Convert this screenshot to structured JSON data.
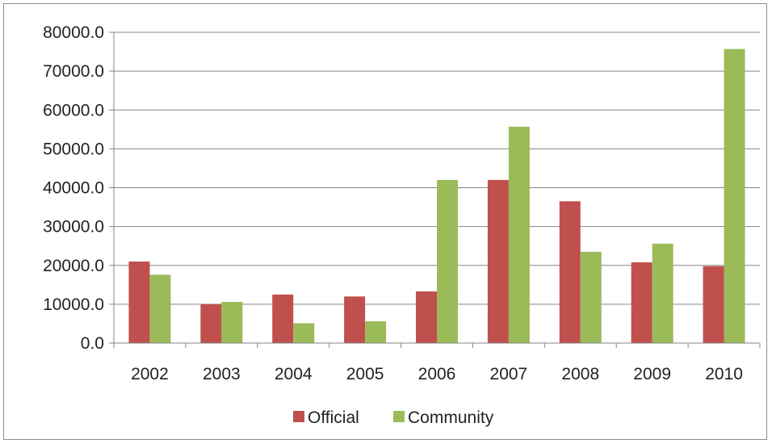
{
  "chart_data": {
    "type": "bar",
    "categories": [
      "2002",
      "2003",
      "2004",
      "2005",
      "2006",
      "2007",
      "2008",
      "2009",
      "2010"
    ],
    "series": [
      {
        "name": "Official",
        "color": "#c0504d",
        "values": [
          21000,
          10000,
          12500,
          12000,
          13300,
          42000,
          36500,
          20800,
          19800
        ]
      },
      {
        "name": "Community",
        "color": "#9bbb59",
        "values": [
          17600,
          10600,
          5100,
          5600,
          42000,
          55700,
          23500,
          25600,
          75700
        ]
      }
    ],
    "y_ticks": [
      "0.0",
      "10000.0",
      "20000.0",
      "30000.0",
      "40000.0",
      "50000.0",
      "60000.0",
      "70000.0",
      "80000.0"
    ],
    "ylim": [
      0,
      80000
    ],
    "grid": true,
    "legend_position": "bottom",
    "title": "",
    "xlabel": "",
    "ylabel": ""
  }
}
